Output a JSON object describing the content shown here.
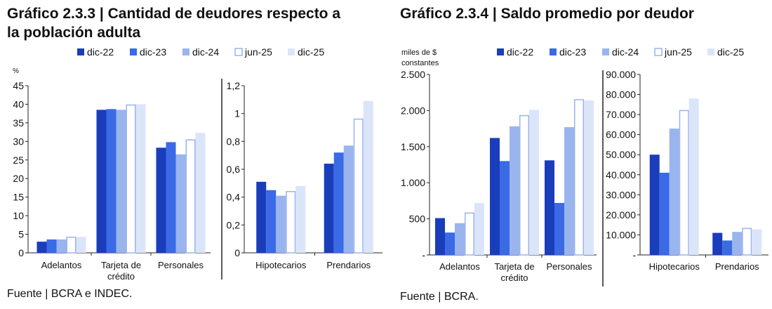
{
  "colors": {
    "dic-22": "#1a3dbb",
    "dic-23": "#3a6ae6",
    "dic-24": "#9ab4ee",
    "jun-25": "#ffffff",
    "jun-25-stroke": "#9ab4ee",
    "dic-25": "#dbe5fa",
    "axis": "#222222"
  },
  "charts": [
    {
      "title": "Gráfico 2.3.3 | Cantidad de deudores respecto a la población adulta",
      "title_lines": [
        "Gráfico 2.3.3 | Cantidad de deudores respecto a",
        "la población adulta"
      ],
      "source": "Fuente | BCRA e INDEC.",
      "legend": [
        "dic-22",
        "dic-23",
        "dic-24",
        "jun-25",
        "dic-25"
      ]
    },
    {
      "title": "Gráfico 2.3.4 | Saldo promedio por deudor",
      "title_lines": [
        "Gráfico 2.3.4 | Saldo promedio por deudor"
      ],
      "source": "Fuente | BCRA.",
      "legend": [
        "dic-22",
        "dic-23",
        "dic-24",
        "jun-25",
        "dic-25"
      ]
    }
  ],
  "chart_data": [
    {
      "type": "bar",
      "title": "Gráfico 2.3.3 | Cantidad de deudores respecto a la población adulta",
      "panels": [
        {
          "unit_label": [
            "%"
          ],
          "categories": [
            [
              "Adelantos"
            ],
            [
              "Tarjeta de",
              "crédito"
            ],
            [
              "Personales"
            ]
          ],
          "ylim": [
            0,
            45
          ],
          "ticks": [
            0,
            5,
            10,
            15,
            20,
            25,
            30,
            35,
            40,
            45
          ],
          "tick_labels": [
            "0",
            "5",
            "10",
            "15",
            "20",
            "25",
            "30",
            "35",
            "40",
            "45"
          ],
          "series": [
            {
              "name": "dic-22",
              "values": [
                3.0,
                38.5,
                28.3
              ]
            },
            {
              "name": "dic-23",
              "values": [
                3.6,
                38.7,
                29.8
              ]
            },
            {
              "name": "dic-24",
              "values": [
                3.6,
                38.5,
                26.5
              ]
            },
            {
              "name": "jun-25",
              "values": [
                4.2,
                39.8,
                30.4
              ]
            },
            {
              "name": "dic-25",
              "values": [
                4.3,
                40.0,
                32.3
              ]
            }
          ]
        },
        {
          "unit_label": [],
          "categories": [
            [
              "Hipotecarios"
            ],
            [
              "Prendarios"
            ]
          ],
          "ylim": [
            0,
            1.2
          ],
          "ticks": [
            0,
            0.2,
            0.4,
            0.6,
            0.8,
            1.0,
            1.2
          ],
          "tick_labels": [
            "0",
            "0,2",
            "0,4",
            "0,6",
            "0,8",
            "1",
            "1,2"
          ],
          "series": [
            {
              "name": "dic-22",
              "values": [
                0.51,
                0.64
              ]
            },
            {
              "name": "dic-23",
              "values": [
                0.45,
                0.72
              ]
            },
            {
              "name": "dic-24",
              "values": [
                0.41,
                0.77
              ]
            },
            {
              "name": "jun-25",
              "values": [
                0.44,
                0.96
              ]
            },
            {
              "name": "dic-25",
              "values": [
                0.48,
                1.09
              ]
            }
          ]
        }
      ],
      "legend": [
        "dic-22",
        "dic-23",
        "dic-24",
        "jun-25",
        "dic-25"
      ],
      "legend_position": "top"
    },
    {
      "type": "bar",
      "title": "Gráfico 2.3.4 | Saldo promedio por deudor",
      "panels": [
        {
          "unit_label": [
            "miles de $",
            "constantes"
          ],
          "categories": [
            [
              "Adelantos"
            ],
            [
              "Tarjeta de",
              "crédito"
            ],
            [
              "Personales"
            ]
          ],
          "ylim": [
            0,
            2500
          ],
          "ticks": [
            0,
            500,
            1000,
            1500,
            2000,
            2500
          ],
          "tick_labels": [
            "-",
            "500",
            "1.000",
            "1.500",
            "2.000",
            "2.500"
          ],
          "series": [
            {
              "name": "dic-22",
              "values": [
                510,
                1620,
                1310
              ]
            },
            {
              "name": "dic-23",
              "values": [
                310,
                1300,
                720
              ]
            },
            {
              "name": "dic-24",
              "values": [
                440,
                1780,
                1770
              ]
            },
            {
              "name": "jun-25",
              "values": [
                580,
                1930,
                2150
              ]
            },
            {
              "name": "dic-25",
              "values": [
                720,
                2010,
                2140
              ]
            }
          ]
        },
        {
          "unit_label": [],
          "categories": [
            [
              "Hipotecarios"
            ],
            [
              "Prendarios"
            ]
          ],
          "ylim": [
            0,
            90000
          ],
          "ticks": [
            0,
            10000,
            20000,
            30000,
            40000,
            50000,
            60000,
            70000,
            80000,
            90000
          ],
          "tick_labels": [
            "-",
            "10.000",
            "20.000",
            "30.000",
            "40.000",
            "50.000",
            "60.000",
            "70.000",
            "80.000",
            "90.000"
          ],
          "series": [
            {
              "name": "dic-22",
              "values": [
                50000,
                11000
              ]
            },
            {
              "name": "dic-23",
              "values": [
                41000,
                7200
              ]
            },
            {
              "name": "dic-24",
              "values": [
                63000,
                11500
              ]
            },
            {
              "name": "jun-25",
              "values": [
                72000,
                13200
              ]
            },
            {
              "name": "dic-25",
              "values": [
                78000,
                12800
              ]
            }
          ]
        }
      ],
      "legend": [
        "dic-22",
        "dic-23",
        "dic-24",
        "jun-25",
        "dic-25"
      ],
      "legend_position": "top"
    }
  ]
}
